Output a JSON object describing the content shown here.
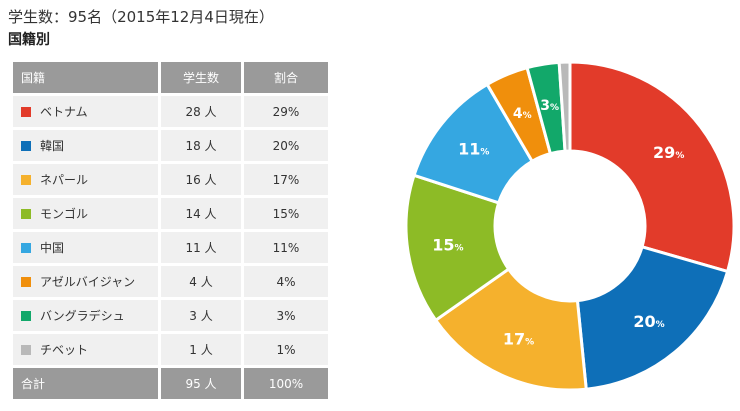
{
  "header": {
    "title": "学生数：95名（2015年12月4日現在）",
    "subtitle": "国籍別"
  },
  "table": {
    "headers": [
      "国籍",
      "学生数",
      "割合"
    ],
    "rows": [
      {
        "name": "ベトナム",
        "count": "28 人",
        "pct": "29%"
      },
      {
        "name": "韓国",
        "count": "18 人",
        "pct": "20%"
      },
      {
        "name": "ネパール",
        "count": "16 人",
        "pct": "17%"
      },
      {
        "name": "モンゴル",
        "count": "14 人",
        "pct": "15%"
      },
      {
        "name": "中国",
        "count": "11 人",
        "pct": "11%"
      },
      {
        "name": "アゼルバイジャン",
        "count": "4 人",
        "pct": "4%"
      },
      {
        "name": "バングラデシュ",
        "count": "3 人",
        "pct": "3%"
      },
      {
        "name": "チベット",
        "count": "1 人",
        "pct": "1%"
      }
    ],
    "total": {
      "name": "合計",
      "count": "95 人",
      "pct": "100%"
    }
  },
  "chart_data": {
    "type": "pie",
    "categories": [
      "ベトナム",
      "韓国",
      "ネパール",
      "モンゴル",
      "中国",
      "アゼルバイジャン",
      "バングラデシュ",
      "チベット"
    ],
    "values": [
      28,
      18,
      16,
      14,
      11,
      4,
      3,
      1
    ],
    "percent_labels": [
      "29",
      "20",
      "17",
      "15",
      "11",
      "4",
      "3",
      ""
    ],
    "unit": "%",
    "colors": [
      "#e23b2a",
      "#0e6fb8",
      "#f5b12d",
      "#8dbb26",
      "#35a7e1",
      "#f08f0c",
      "#12a86a",
      "#b9b9b9"
    ],
    "donut": true
  }
}
